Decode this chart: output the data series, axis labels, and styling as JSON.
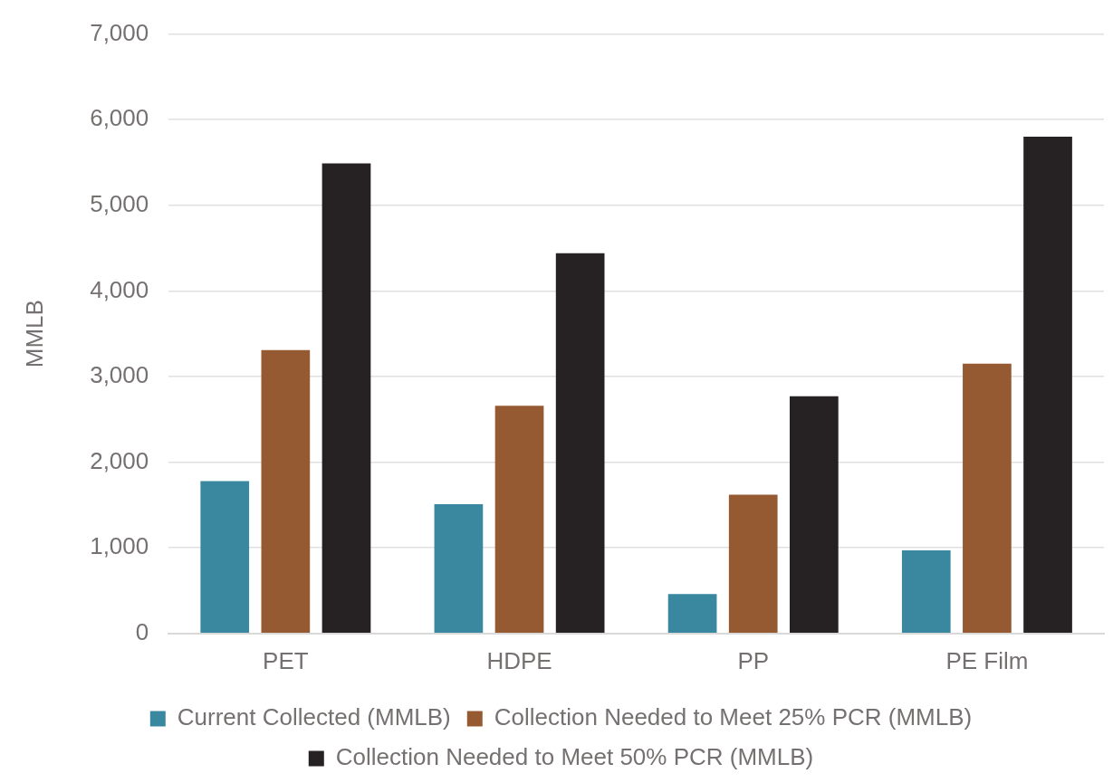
{
  "chart_data": {
    "type": "bar",
    "ylabel": "MMLB",
    "categories": [
      "PET",
      "HDPE",
      "PP",
      "PE Film"
    ],
    "series": [
      {
        "name": "Current Collected (MMLB)",
        "color": "#3a87a0",
        "values": [
          1780,
          1510,
          460,
          970
        ]
      },
      {
        "name": "Collection Needed to Meet 25% PCR (MMLB)",
        "color": "#965a32",
        "values": [
          3310,
          2660,
          1620,
          3150
        ]
      },
      {
        "name": "Collection Needed to Meet 50% PCR (MMLB)",
        "color": "#262223",
        "values": [
          5490,
          4440,
          2770,
          5800
        ]
      }
    ],
    "ylim": [
      0,
      7000
    ],
    "yticks": [
      0,
      {
        "value": 1000,
        "label": "1,000"
      },
      {
        "value": 2000,
        "label": "2,000"
      },
      {
        "value": 3000,
        "label": "3,000"
      },
      {
        "value": 4000,
        "label": "4,000"
      },
      {
        "value": 5000,
        "label": "5,000"
      },
      {
        "value": 6000,
        "label": "6,000"
      },
      {
        "value": 7000,
        "label": "7,000"
      }
    ],
    "grid": "y",
    "legend": "bottom"
  }
}
